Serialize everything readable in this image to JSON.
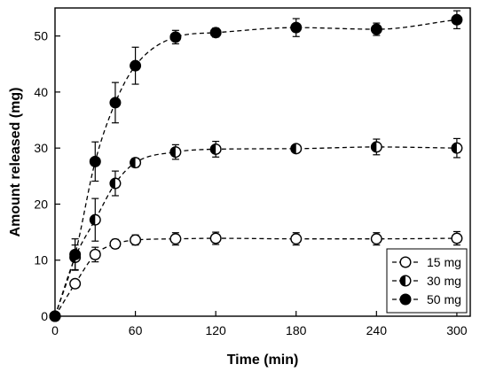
{
  "chart_data": {
    "type": "scatter",
    "title": "",
    "xlabel": "Time (min)",
    "ylabel": "Amount released (mg)",
    "xlim": [
      0,
      310
    ],
    "ylim": [
      0,
      55
    ],
    "xticks": [
      0,
      60,
      120,
      180,
      240,
      300
    ],
    "yticks": [
      0,
      10,
      20,
      30,
      40,
      50
    ],
    "grid": false,
    "legend_position": "bottom-right",
    "line_style": "dashed",
    "series": [
      {
        "name": "15 mg",
        "marker": "open-circle",
        "x": [
          0,
          15,
          30,
          45,
          60,
          90,
          120,
          180,
          240,
          300
        ],
        "y": [
          0,
          5.8,
          11.0,
          12.9,
          13.6,
          13.8,
          13.9,
          13.8,
          13.8,
          13.9
        ],
        "err": [
          0,
          0.6,
          1.3,
          0.8,
          0.9,
          1.1,
          1.1,
          1.1,
          1.1,
          1.2
        ]
      },
      {
        "name": "30 mg",
        "marker": "half-filled-circle",
        "x": [
          0,
          15,
          30,
          45,
          60,
          90,
          120,
          180,
          240,
          300
        ],
        "y": [
          0,
          10.5,
          17.2,
          23.7,
          27.4,
          29.3,
          29.8,
          29.9,
          30.2,
          30.0
        ],
        "err": [
          0,
          2.2,
          3.8,
          2.2,
          0.8,
          1.3,
          1.4,
          0.6,
          1.4,
          1.7
        ]
      },
      {
        "name": "50 mg",
        "marker": "filled-circle",
        "x": [
          0,
          15,
          30,
          45,
          60,
          90,
          120,
          180,
          240,
          300
        ],
        "y": [
          0,
          11.0,
          27.6,
          38.1,
          44.7,
          49.8,
          50.6,
          51.5,
          51.2,
          52.9
        ],
        "err": [
          0,
          2.8,
          3.5,
          3.6,
          3.3,
          1.2,
          0.8,
          1.6,
          1.1,
          1.6
        ]
      }
    ]
  }
}
